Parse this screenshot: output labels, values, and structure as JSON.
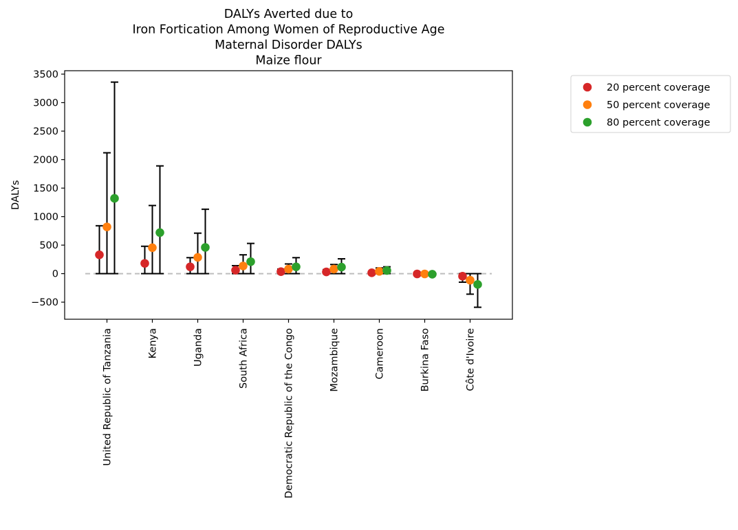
{
  "chart_data": {
    "type": "scatter",
    "title_lines": [
      "DALYs Averted due to",
      "Iron Fortication Among Women of Reproductive Age",
      "Maternal Disorder DALYs",
      "Maize flour"
    ],
    "xlabel": "",
    "ylabel": "DALYs",
    "ylim": [
      -800,
      3560
    ],
    "yticks": [
      -500,
      0,
      500,
      1000,
      1500,
      2000,
      2500,
      3000,
      3500
    ],
    "categories": [
      "United Republic of Tanzania",
      "Kenya",
      "Uganda",
      "South Africa",
      "Democratic Republic of the Congo",
      "Mozambique",
      "Cameroon",
      "Burkina Faso",
      "Côte d'Ivoire"
    ],
    "baseline": 0,
    "grid": false,
    "legend_position": "outside-top-right",
    "series": [
      {
        "name": "20 percent coverage",
        "color": "#d62728",
        "values": [
          330,
          180,
          120,
          60,
          35,
          30,
          15,
          -5,
          -45
        ],
        "lower": [
          0,
          0,
          0,
          0,
          0,
          0,
          0,
          -10,
          -150
        ],
        "upper": [
          840,
          480,
          280,
          140,
          80,
          70,
          40,
          0,
          0
        ]
      },
      {
        "name": "50 percent coverage",
        "color": "#ff7f0e",
        "values": [
          820,
          455,
          285,
          135,
          80,
          80,
          40,
          -5,
          -115
        ],
        "lower": [
          0,
          0,
          0,
          0,
          0,
          0,
          0,
          -20,
          -360
        ],
        "upper": [
          2120,
          1195,
          710,
          330,
          170,
          160,
          100,
          0,
          0
        ]
      },
      {
        "name": "80 percent coverage",
        "color": "#2ca02c",
        "values": [
          1320,
          720,
          460,
          210,
          120,
          115,
          55,
          -10,
          -190
        ],
        "lower": [
          0,
          0,
          0,
          0,
          0,
          0,
          0,
          -35,
          -590
        ],
        "upper": [
          3360,
          1890,
          1130,
          530,
          280,
          260,
          120,
          0,
          0
        ]
      }
    ]
  }
}
